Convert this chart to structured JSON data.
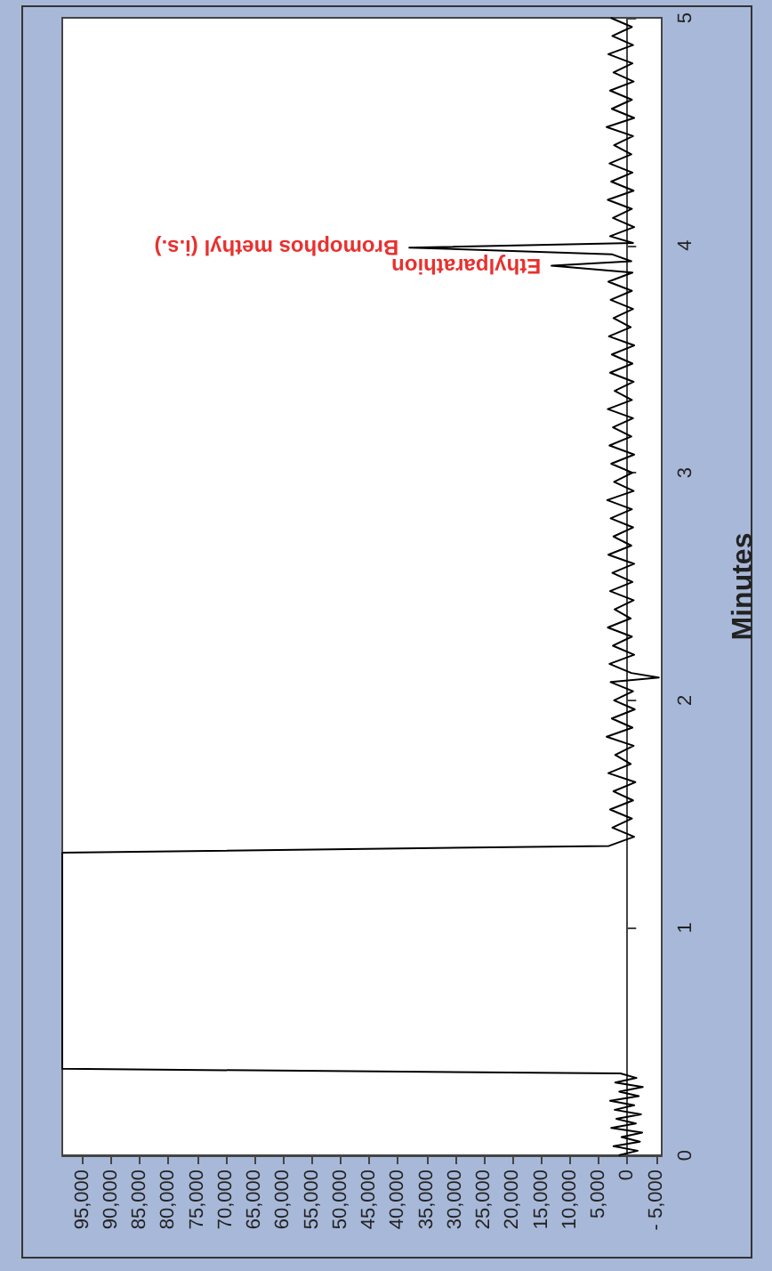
{
  "chart_data": {
    "type": "line",
    "ylabel": "Minutes",
    "ylim": [
      0,
      5
    ],
    "yticks": [
      0,
      1,
      2,
      3,
      4,
      5
    ],
    "xlim": [
      98500,
      -6000
    ],
    "xticks": [
      {
        "value": -5000,
        "label": "- 5,000"
      },
      0,
      {
        "value": 5000,
        "label": "5,000"
      },
      {
        "value": 10000,
        "label": "10,000"
      },
      {
        "value": 15000,
        "label": "15,000"
      },
      {
        "value": 20000,
        "label": "20,000"
      },
      {
        "value": 25000,
        "label": "25,000"
      },
      {
        "value": 30000,
        "label": "30,000"
      },
      {
        "value": 35000,
        "label": "35,000"
      },
      {
        "value": 40000,
        "label": "40,000"
      },
      {
        "value": 45000,
        "label": "45,000"
      },
      {
        "value": 50000,
        "label": "50,000"
      },
      {
        "value": 55000,
        "label": "55,000"
      },
      {
        "value": 60000,
        "label": "60,000"
      },
      {
        "value": 65000,
        "label": "65,000"
      },
      {
        "value": 70000,
        "label": "70,000"
      },
      {
        "value": 75000,
        "label": "75,000"
      },
      {
        "value": 80000,
        "label": "80,000"
      },
      {
        "value": 85000,
        "label": "85,000"
      },
      {
        "value": 90000,
        "label": "90,000"
      },
      {
        "value": 95000,
        "label": "95,000"
      }
    ],
    "marker": "none",
    "series": [
      {
        "color": "#000000",
        "values": [
          0,
          0.02,
          0.04,
          0.06,
          0.08,
          0.1,
          0.12,
          0.14,
          0.16,
          0.18,
          0.2,
          0.22,
          0.24,
          0.26,
          0.28,
          0.3,
          0.32,
          0.34,
          0.36,
          0.38,
          1.33,
          1.36,
          1.4,
          1.44,
          1.48,
          1.52,
          1.56,
          1.6,
          1.64,
          1.68,
          1.72,
          1.76,
          1.8,
          1.84,
          1.88,
          1.92,
          1.96,
          2.0,
          2.04,
          2.08,
          2.1,
          2.12,
          2.16,
          2.2,
          2.24,
          2.28,
          2.32,
          2.36,
          2.4,
          2.44,
          2.48,
          2.52,
          2.56,
          2.6,
          2.64,
          2.68,
          2.72,
          2.76,
          2.8,
          2.84,
          2.88,
          2.92,
          2.96,
          3.0,
          3.04,
          3.08,
          3.12,
          3.16,
          3.2,
          3.24,
          3.28,
          3.32,
          3.36,
          3.4,
          3.44,
          3.48,
          3.52,
          3.56,
          3.6,
          3.64,
          3.68,
          3.72,
          3.76,
          3.8,
          3.84,
          3.88,
          3.91,
          3.93,
          3.96,
          3.99,
          4.01,
          4.04,
          4.08,
          4.12,
          4.16,
          4.2,
          4.24,
          4.28,
          4.32,
          4.36,
          4.4,
          4.44,
          4.48,
          4.52,
          4.56,
          4.6,
          4.64,
          4.68,
          4.72,
          4.76,
          4.8,
          4.84,
          4.88,
          4.92,
          4.96,
          5.0
        ],
        "x": [
          1500,
          -1800,
          2400,
          -2200,
          1000,
          -2600,
          2800,
          -1500,
          1900,
          -2400,
          2200,
          -1200,
          3000,
          -2000,
          1400,
          -2700,
          2100,
          -1600,
          1200,
          98500,
          98500,
          3200,
          -1200,
          2600,
          -800,
          3000,
          -1000,
          2400,
          -1400,
          3300,
          -600,
          2100,
          -1100,
          3600,
          -900,
          2700,
          -1300,
          2300,
          -1000,
          2900,
          -5500,
          -700,
          3100,
          -1200,
          2500,
          -800,
          3400,
          -600,
          2200,
          -1100,
          3000,
          -900,
          2600,
          -1200,
          3300,
          -700,
          2400,
          -1000,
          2900,
          -800,
          3500,
          -1100,
          2300,
          -900,
          2800,
          -1200,
          3100,
          -700,
          2500,
          -1000,
          3400,
          -800,
          2200,
          -1100,
          3000,
          -900,
          2700,
          -1200,
          3200,
          -600,
          2400,
          -1000,
          2900,
          -800,
          3300,
          -900,
          13200,
          -700,
          2600,
          38000,
          -1000,
          3000,
          -1200,
          2500,
          -800,
          3400,
          -1100,
          2800,
          -900,
          3100,
          -700,
          2300,
          -1000,
          3600,
          -1200,
          2700,
          -800,
          3000,
          -1100,
          2400,
          -900,
          3300,
          -1000,
          2600,
          -800,
          2900
        ]
      }
    ],
    "annotations": [
      {
        "text": "Ethylparathion",
        "x": 13200,
        "y": 3.91
      },
      {
        "text": "Bromophos methyl (i.s.)",
        "x": 38000,
        "y": 3.99
      }
    ]
  }
}
